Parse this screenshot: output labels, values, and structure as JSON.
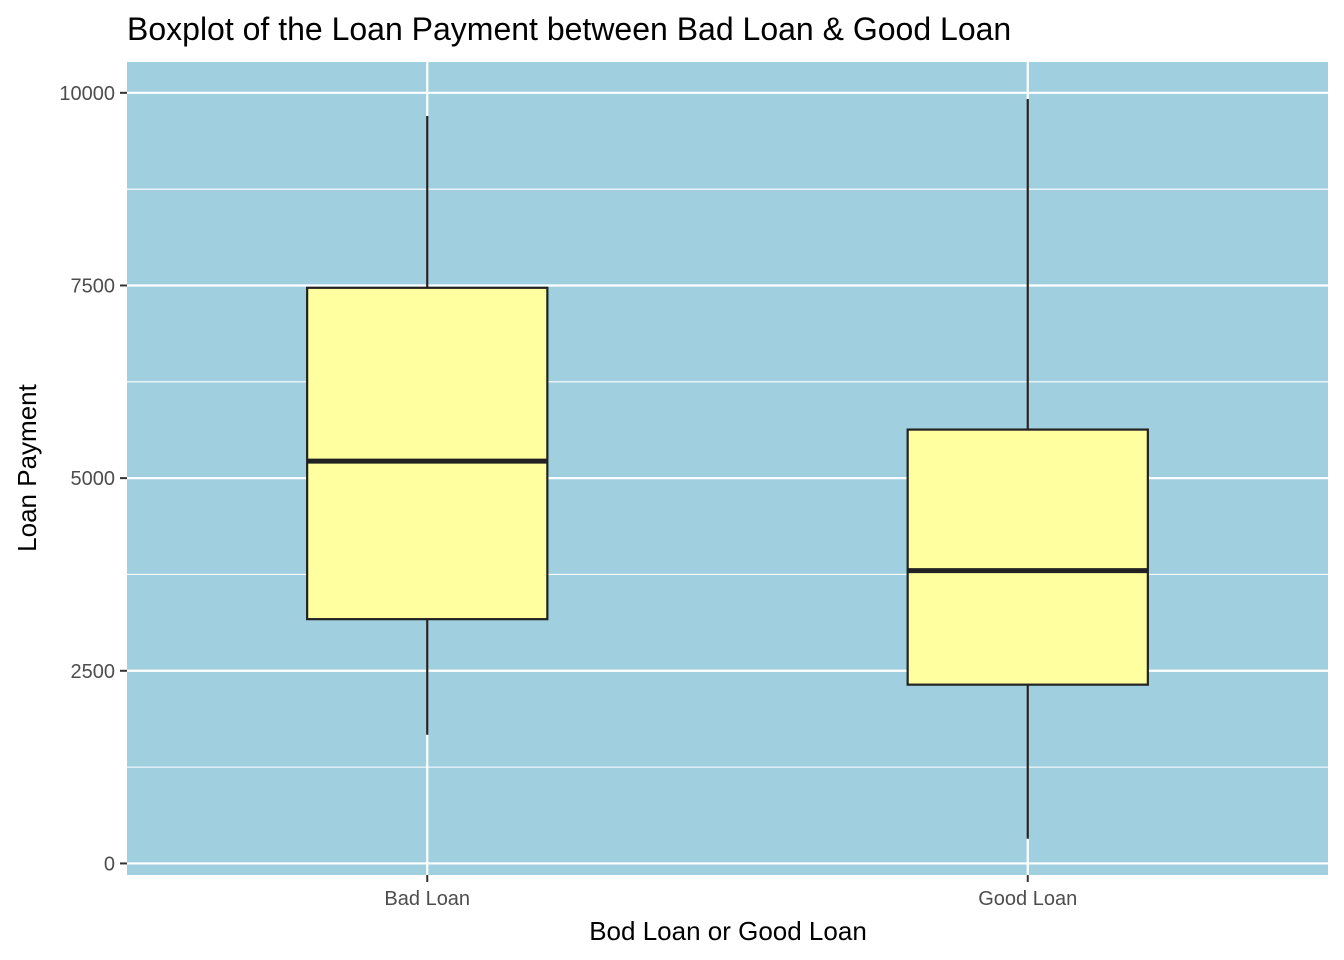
{
  "chart_data": {
    "type": "boxplot",
    "title": "Boxplot of the Loan Payment between Bad Loan & Good Loan",
    "xlabel": "Bod Loan or Good Loan",
    "ylabel": "Loan Payment",
    "categories": [
      "Bad Loan",
      "Good Loan"
    ],
    "boxes": [
      {
        "category": "Bad Loan",
        "min": 1670,
        "q1": 3170,
        "median": 5220,
        "q3": 7470,
        "max": 9700
      },
      {
        "category": "Good Loan",
        "min": 320,
        "q1": 2320,
        "median": 3800,
        "q3": 5630,
        "max": 9920
      }
    ],
    "ylim": [
      -150,
      10400
    ],
    "yticks": [
      0,
      2500,
      5000,
      7500,
      10000
    ],
    "yticks_minor": [
      1250,
      3750,
      6250,
      8750
    ],
    "grid": true,
    "legend": "none",
    "colors": {
      "panel_background": "#a0cfdf",
      "grid": "#ffffff",
      "box_fill": "#ffffa0",
      "box_stroke": "#222222",
      "tick_text": "#4d4d4d",
      "text": "#000000"
    }
  }
}
